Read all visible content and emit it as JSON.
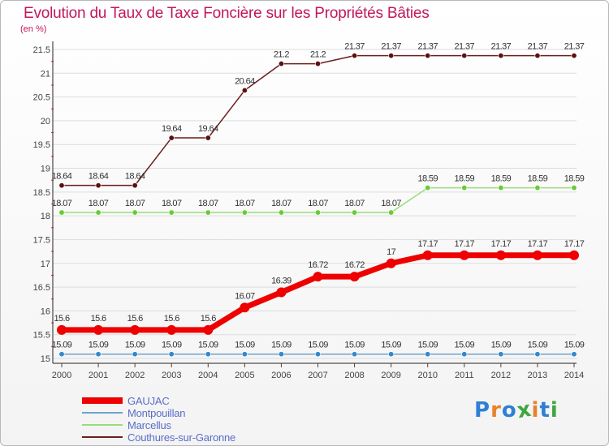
{
  "title": "Evolution du Taux de Taxe Foncière sur les Propriétés Bâties",
  "unit": "(en %)",
  "logo": {
    "text": "Proxiti",
    "colors": [
      "#2f7fd4",
      "#e8812a",
      "#2f7fd4",
      "#3fa63f",
      "#e8812a",
      "#2f7fd4",
      "#3fa63f"
    ]
  },
  "chart_data": {
    "type": "line",
    "title": "Evolution du Taux de Taxe Foncière sur les Propriétés Bâties",
    "ylabel": "(en %)",
    "xlabel": "",
    "ylim": [
      15,
      21.5
    ],
    "yticks": [
      "15",
      "15.5",
      "16",
      "16.5",
      "17",
      "17.5",
      "18",
      "18.5",
      "19",
      "19.5",
      "20",
      "20.5",
      "21",
      "21.5"
    ],
    "x": [
      "2000",
      "2001",
      "2002",
      "2003",
      "2004",
      "2005",
      "2006",
      "2007",
      "2008",
      "2009",
      "2010",
      "2011",
      "2012",
      "2013",
      "2014"
    ],
    "grid": "horizontal",
    "legend_position": "bottom-left",
    "series": [
      {
        "name": "Couthures-sur-Garonne",
        "color": "#6b1e1e",
        "fill": "#5a1010",
        "width": 1.5,
        "values": [
          18.64,
          18.64,
          18.64,
          19.64,
          19.64,
          20.64,
          21.2,
          21.2,
          21.37,
          21.37,
          21.37,
          21.37,
          21.37,
          21.37,
          21.37
        ],
        "labels": [
          "18.64",
          "18.64",
          "18.64",
          "19.64",
          "19.64",
          "20.64",
          "21.2",
          "21.2",
          "21.37",
          "21.37",
          "21.37",
          "21.37",
          "21.37",
          "21.37",
          "21.37"
        ]
      },
      {
        "name": "Marcellus",
        "color": "#99dd77",
        "fill": "#66cc33",
        "width": 1.5,
        "values": [
          18.07,
          18.07,
          18.07,
          18.07,
          18.07,
          18.07,
          18.07,
          18.07,
          18.07,
          18.07,
          18.59,
          18.59,
          18.59,
          18.59,
          18.59
        ],
        "labels": [
          "18.07",
          "18.07",
          "18.07",
          "18.07",
          "18.07",
          "18.07",
          "18.07",
          "18.07",
          "18.07",
          "18.07",
          "18.59",
          "18.59",
          "18.59",
          "18.59",
          "18.59"
        ]
      },
      {
        "name": "Montpouillan",
        "color": "#6fa3cc",
        "fill": "#3388cc",
        "width": 1.5,
        "values": [
          15.09,
          15.09,
          15.09,
          15.09,
          15.09,
          15.09,
          15.09,
          15.09,
          15.09,
          15.09,
          15.09,
          15.09,
          15.09,
          15.09,
          15.09
        ],
        "labels": [
          "15.09",
          "15.09",
          "15.09",
          "15.09",
          "15.09",
          "15.09",
          "15.09",
          "15.09",
          "15.09",
          "15.09",
          "15.09",
          "15.09",
          "15.09",
          "15.09",
          "15.09"
        ]
      },
      {
        "name": "GAUJAC",
        "color": "#ee0000",
        "fill": "#ee0000",
        "width": 7,
        "values": [
          15.6,
          15.6,
          15.6,
          15.6,
          15.6,
          16.07,
          16.39,
          16.72,
          16.72,
          17,
          17.17,
          17.17,
          17.17,
          17.17,
          17.17
        ],
        "labels": [
          "15.6",
          "15.6",
          "15.6",
          "15.6",
          "15.6",
          "16.07",
          "16.39",
          "16.72",
          "16.72",
          "17",
          "17.17",
          "17.17",
          "17.17",
          "17.17",
          "17.17"
        ]
      }
    ],
    "legend_order": [
      "GAUJAC",
      "Montpouillan",
      "Marcellus",
      "Couthures-sur-Garonne"
    ]
  }
}
